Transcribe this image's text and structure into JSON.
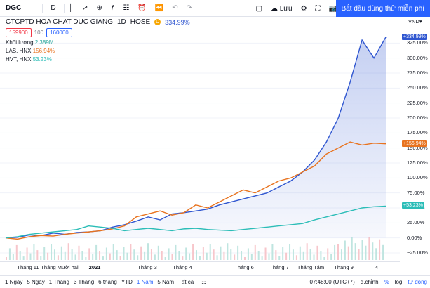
{
  "toolbar": {
    "symbol": "DGC",
    "interval": "D",
    "save_label": "Lưu",
    "cta_label": "Bắt đầu dùng thử miễn phí"
  },
  "legend": {
    "title": "CTCPTD HOA CHAT DUC GIANG",
    "interval": "1D",
    "exchange": "HOSE",
    "badge": "D",
    "change": "334.99%",
    "sell_price": "159900",
    "spread": "100",
    "buy_price": "160000",
    "volume_label": "Khối lượng",
    "volume_value": "2.389M",
    "compare1_label": "LAS, HNX",
    "compare1_value": "156.94%",
    "compare2_label": "HVT, HNX",
    "compare2_value": "53.23%"
  },
  "axis": {
    "currency": "VND",
    "ticks": [
      "325.00%",
      "300.00%",
      "275.00%",
      "250.00%",
      "225.00%",
      "200.00%",
      "175.00%",
      "150.00%",
      "125.00%",
      "100.00%",
      "75.00%",
      "50.00%",
      "25.00%",
      "0.00%",
      "−25.00%"
    ],
    "badge_main": "+334.99%",
    "badge_las": "+156.94%",
    "badge_hvt": "+53.23%"
  },
  "xaxis": [
    "Tháng 11",
    "Tháng Mười hai",
    "2021",
    "Tháng 3",
    "Tháng 4",
    "Tháng 6",
    "Tháng 7",
    "Tháng Tám",
    "Tháng 9",
    "4"
  ],
  "ranges": [
    "1 Ngày",
    "5 Ngày",
    "1 Tháng",
    "3 Tháng",
    "6 tháng",
    "YTD",
    "1 Năm",
    "5 Năm",
    "Tất cả"
  ],
  "active_range": "1 Năm",
  "status": {
    "time": "07:48:00 (UTC+7)",
    "adjust": "đ.chỉnh",
    "percent": "%",
    "log": "log",
    "auto": "tự động"
  },
  "colors": {
    "main": "#2f56d0",
    "las": "#e8731f",
    "hvt": "#2bbdb7",
    "accent": "#2962ff"
  },
  "chart_data": {
    "type": "line",
    "ylim": [
      -25,
      350
    ],
    "series": [
      {
        "name": "CTCPTD HOA CHAT DUC GIANG",
        "values": [
          0,
          1,
          5,
          4,
          8,
          6,
          9,
          10,
          12,
          18,
          22,
          28,
          35,
          30,
          40,
          42,
          45,
          48,
          55,
          60,
          65,
          70,
          75,
          85,
          95,
          110,
          130,
          160,
          200,
          260,
          330,
          300,
          335
        ]
      },
      {
        "name": "LAS, HNX",
        "values": [
          0,
          -2,
          2,
          4,
          3,
          6,
          8,
          10,
          12,
          15,
          20,
          35,
          40,
          45,
          38,
          42,
          55,
          50,
          60,
          70,
          80,
          75,
          85,
          95,
          100,
          110,
          120,
          140,
          150,
          160,
          155,
          158,
          157
        ]
      },
      {
        "name": "HVT, HNX",
        "values": [
          0,
          2,
          6,
          8,
          10,
          12,
          14,
          20,
          18,
          16,
          12,
          14,
          16,
          14,
          12,
          15,
          16,
          14,
          13,
          12,
          14,
          16,
          18,
          20,
          22,
          24,
          30,
          35,
          40,
          45,
          50,
          52,
          53
        ]
      }
    ]
  }
}
